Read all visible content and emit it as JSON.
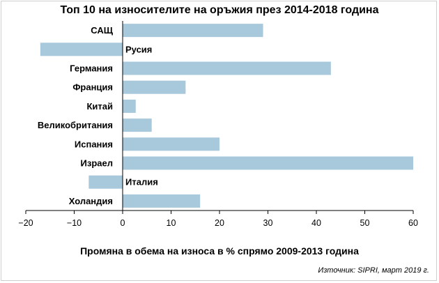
{
  "chart_data": {
    "type": "bar",
    "orientation": "horizontal",
    "title": "Топ 10 на износителите на оръжия през 2014-2018 година",
    "xlabel": "Промяна в обема на износа в % спрямо 2009-2013 година",
    "source": "Източник: SIPRI, март 2019 г.",
    "categories": [
      "САЩ",
      "Русия",
      "Германия",
      "Франция",
      "Китай",
      "Великобритания",
      "Испания",
      "Израел",
      "Италия",
      "Холандия"
    ],
    "values": [
      29,
      -17,
      43,
      13,
      2.7,
      6,
      20,
      60,
      -7,
      16
    ],
    "xlim": [
      -20,
      60
    ],
    "xticks": [
      "−20",
      "−10",
      "0",
      "10",
      "20",
      "30",
      "40",
      "50",
      "60"
    ],
    "xtick_values": [
      -20,
      -10,
      0,
      10,
      20,
      30,
      40,
      50,
      60
    ],
    "bar_color": "#a8c8dc",
    "grid": false
  }
}
